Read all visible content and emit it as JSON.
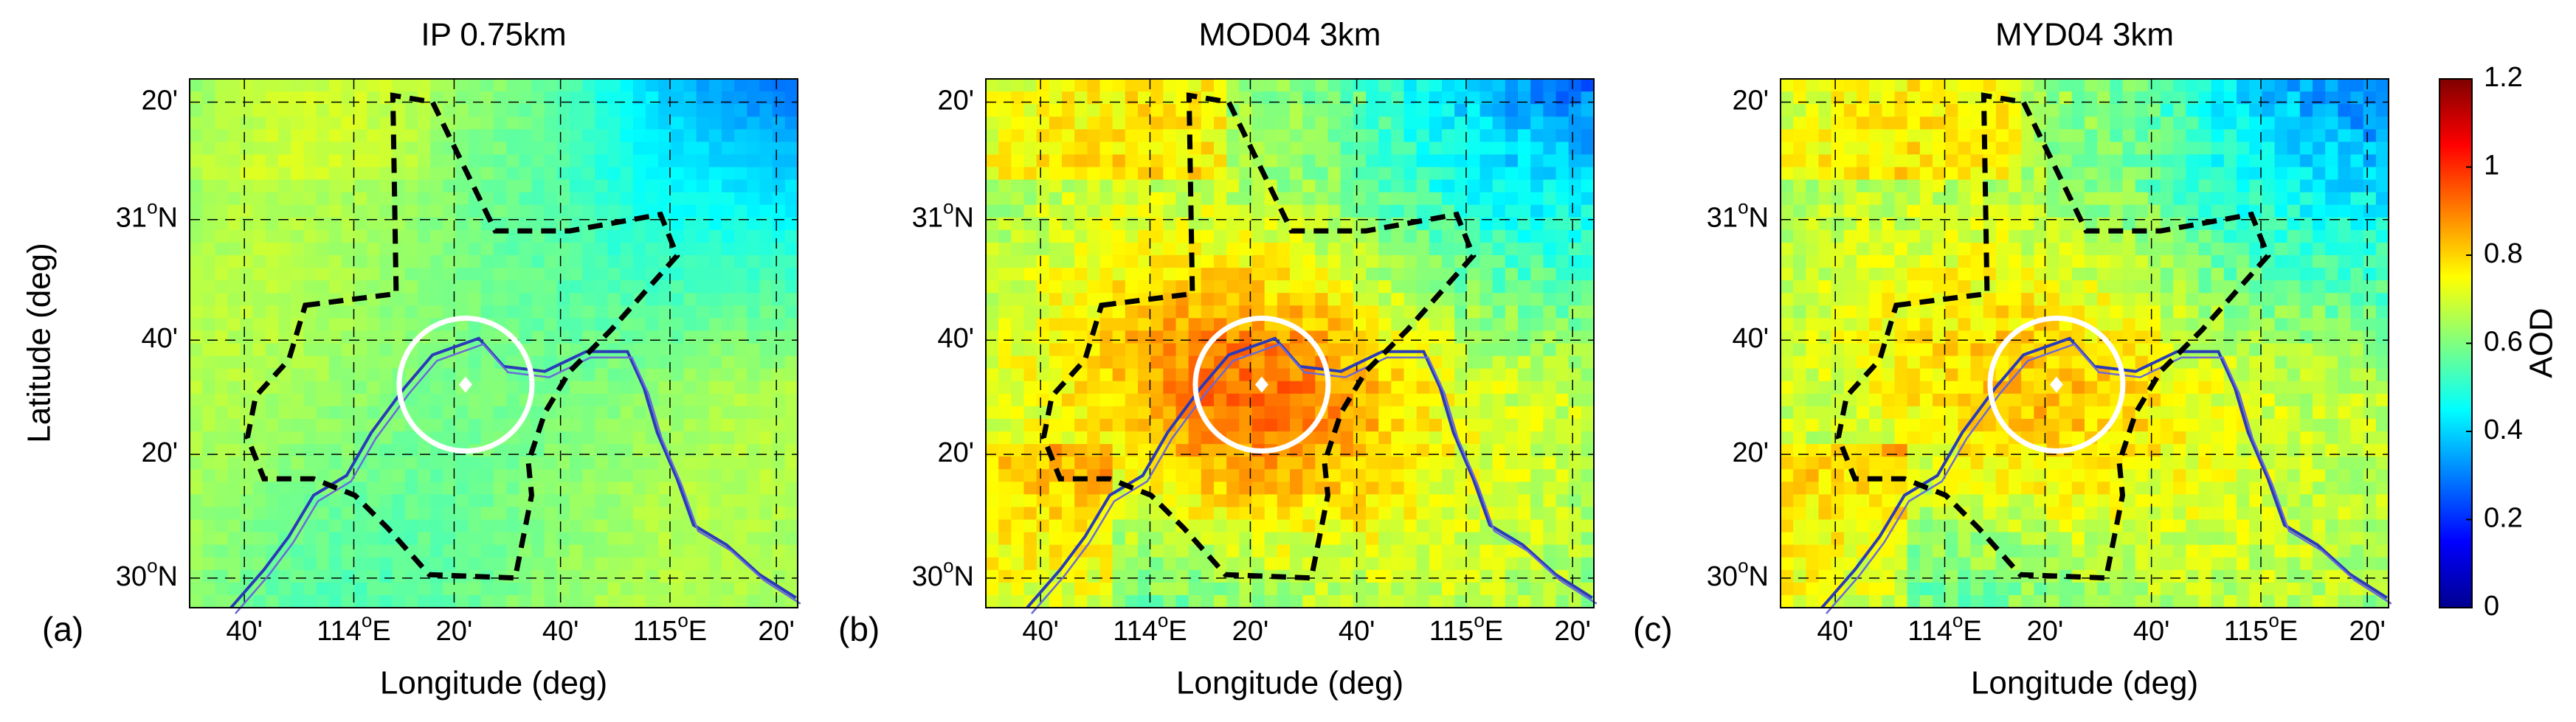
{
  "panels": [
    {
      "title": "IP 0.75km",
      "label": "(a)"
    },
    {
      "title": "MOD04 3km",
      "label": "(b)"
    },
    {
      "title": "MYD04 3km",
      "label": "(c)"
    }
  ],
  "x_label": "Longitude (deg)",
  "y_label": "Latitude (deg)",
  "x_ticks": [
    "40'",
    {
      "text": "114",
      "sup": "o",
      "suffix": "E"
    },
    "20'",
    "40'",
    {
      "text": "115",
      "sup": "o",
      "suffix": "E"
    },
    "20'"
  ],
  "y_ticks": [
    "20'",
    {
      "text": "31",
      "sup": "o",
      "suffix": "N"
    },
    "40'",
    "20'",
    {
      "text": "30",
      "sup": "o",
      "suffix": "N"
    }
  ],
  "colorbar": {
    "label": "AOD",
    "lim": [
      0,
      1.2
    ],
    "ticks": [
      0,
      0.2,
      0.4,
      0.6,
      0.8,
      1,
      1.2
    ],
    "colormap": "jet"
  }
}
